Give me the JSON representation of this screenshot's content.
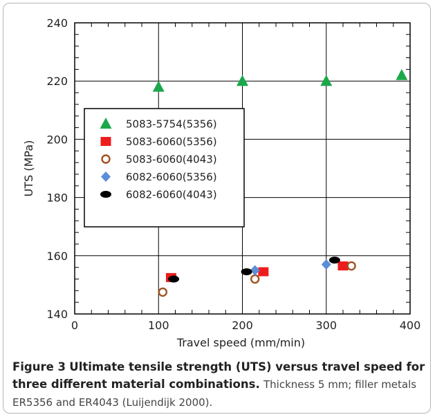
{
  "chart_data": {
    "type": "scatter",
    "xlabel": "Travel speed (mm/min)",
    "ylabel": "UTS (MPa)",
    "xlim": [
      0,
      400
    ],
    "ylim": [
      140,
      240
    ],
    "xticks": [
      0,
      100,
      200,
      300,
      400
    ],
    "yticks": [
      140,
      160,
      180,
      200,
      220,
      240
    ],
    "grid": true,
    "legend_placement": "center-left",
    "series": [
      {
        "name": "5083-5754(5356)",
        "marker": "triangle",
        "color": "#1aa84b",
        "points": [
          [
            100,
            218
          ],
          [
            200,
            220
          ],
          [
            300,
            220
          ],
          [
            390,
            222
          ]
        ]
      },
      {
        "name": "5083-6060(5356)",
        "marker": "square",
        "color": "#ee1c1c",
        "points": [
          [
            115,
            152.5
          ],
          [
            225,
            154.5
          ],
          [
            320,
            156.5
          ]
        ]
      },
      {
        "name": "5083-6060(4043)",
        "marker": "open-circle",
        "color": "#a0521e",
        "points": [
          [
            105,
            147.5
          ],
          [
            215,
            152
          ],
          [
            330,
            156.5
          ]
        ]
      },
      {
        "name": "6082-6060(5356)",
        "marker": "diamond",
        "color": "#5b8ed6",
        "points": [
          [
            215,
            155
          ],
          [
            300,
            157
          ]
        ]
      },
      {
        "name": "6082-6060(4043)",
        "marker": "ellipse",
        "color": "#000000",
        "points": [
          [
            118,
            152
          ],
          [
            205,
            154.5
          ],
          [
            310,
            158.5
          ]
        ]
      }
    ]
  },
  "caption": {
    "label": "Figure 3",
    "title": "Ultimate tensile strength (UTS) versus travel speed for three different material combinations.",
    "body": "Thickness 5 mm; filler metals ER5356 and ER4043 (Luijendijk 2000)."
  }
}
